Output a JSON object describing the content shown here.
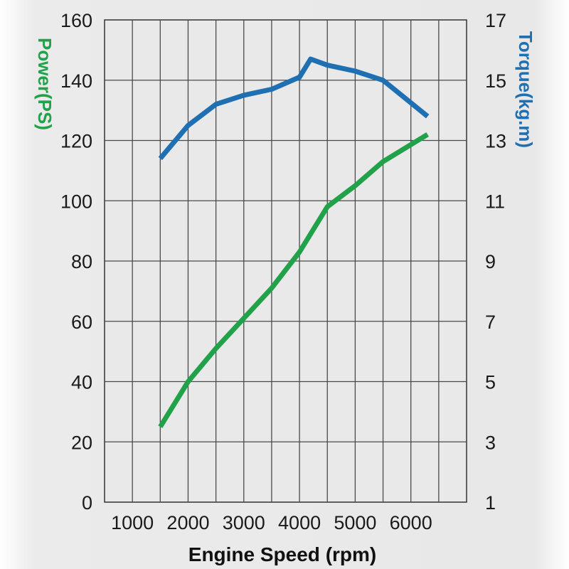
{
  "chart_data": {
    "type": "line",
    "title": "",
    "xlabel": "Engine Speed (rpm)",
    "ylabel": "Power(PS)",
    "y2label": "Torque(kg.m)",
    "xlim": [
      500,
      7000
    ],
    "ylim": [
      0,
      160
    ],
    "y2lim": [
      1,
      17
    ],
    "x_ticks": [
      "1000",
      "2000",
      "3000",
      "4000",
      "5000",
      "6000"
    ],
    "y_ticks": [
      "0",
      "20",
      "40",
      "60",
      "80",
      "100",
      "120",
      "140",
      "160"
    ],
    "y2_ticks": [
      "1",
      "3",
      "5",
      "7",
      "9",
      "11",
      "13",
      "15",
      "17"
    ],
    "grid": true,
    "colors": {
      "power": "#21a24a",
      "torque": "#1f6fb3"
    },
    "series": [
      {
        "name": "Power(PS)",
        "axis": "left",
        "x": [
          1500,
          2000,
          2500,
          3000,
          3500,
          4000,
          4500,
          5000,
          5500,
          6300
        ],
        "values": [
          25,
          40,
          51,
          61,
          71,
          83,
          98,
          105,
          113,
          122
        ]
      },
      {
        "name": "Torque(kg.m)",
        "axis": "right",
        "x": [
          1500,
          2000,
          2500,
          3000,
          3500,
          4000,
          4200,
          4500,
          5000,
          5500,
          6300
        ],
        "values": [
          12.4,
          13.5,
          14.2,
          14.5,
          14.7,
          15.1,
          15.7,
          15.5,
          15.3,
          15.0,
          13.8
        ]
      }
    ]
  }
}
